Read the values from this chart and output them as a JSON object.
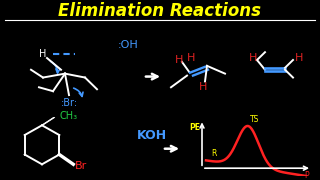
{
  "title": "Elimination Reactions",
  "title_color": "#FFFF00",
  "bg_color": "#000000",
  "white": "#FFFFFF",
  "blue": "#4499FF",
  "red": "#FF2222",
  "green": "#22CC44",
  "yellow": "#FFFF00",
  "dark_red": "#DD2222",
  "gray": "#AAAAAA"
}
